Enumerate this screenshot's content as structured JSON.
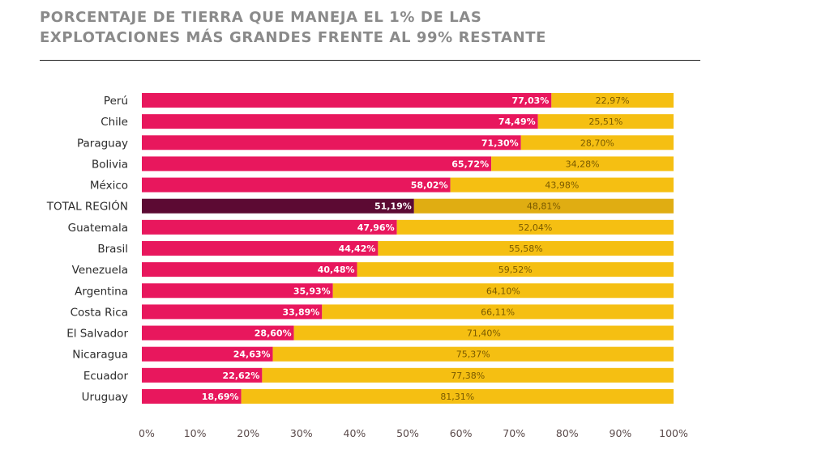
{
  "title": {
    "line1": "PORCENTAJE DE TIERRA QUE MANEJA EL 1% DE LAS",
    "line2": "EXPLOTACIONES MÁS GRANDES FRENTE AL 99% RESTANTE"
  },
  "colors": {
    "top1": "#e8175d",
    "rest99": "#f5bf12",
    "total_top1": "#5c0a33",
    "total_rest99": "#e0ad12"
  },
  "chart_data": {
    "type": "bar",
    "orientation": "horizontal",
    "stacked": true,
    "title": "PORCENTAJE DE TIERRA QUE MANEJA EL 1% DE LAS EXPLOTACIONES MÁS GRANDES FRENTE AL 99% RESTANTE",
    "xlim": [
      0,
      100
    ],
    "categories": [
      "Perú",
      "Chile",
      "Paraguay",
      "Bolivia",
      "México",
      "TOTAL REGIÓN",
      "Guatemala",
      "Brasil",
      "Venezuela",
      "Argentina",
      "Costa Rica",
      "El Salvador",
      "Nicaragua",
      "Ecuador",
      "Uruguay"
    ],
    "highlight_category": "TOTAL REGIÓN",
    "series": [
      {
        "values": [
          77.03,
          74.49,
          71.3,
          65.72,
          58.02,
          51.19,
          47.96,
          44.42,
          40.48,
          35.93,
          33.89,
          28.6,
          24.63,
          22.62,
          18.69
        ]
      },
      {
        "values": [
          22.97,
          25.51,
          28.7,
          34.28,
          43.98,
          48.81,
          52.04,
          55.58,
          59.52,
          64.1,
          66.11,
          71.4,
          75.37,
          77.38,
          81.31
        ]
      }
    ],
    "labels_top": [
      "77,03%",
      "74,49%",
      "71,30%",
      "65,72%",
      "58,02%",
      "51,19%",
      "47,96%",
      "44,42%",
      "40,48%",
      "35,93%",
      "33,89%",
      "28,60%",
      "24,63%",
      "22,62%",
      "18,69%"
    ],
    "labels_rest": [
      "22,97%",
      "25,51%",
      "28,70%",
      "34,28%",
      "43,98%",
      "48,81%",
      "52,04%",
      "55,58%",
      "59,52%",
      "64,10%",
      "66,11%",
      "71,40%",
      "75,37%",
      "77,38%",
      "81,31%"
    ],
    "x_ticks": [
      "0%",
      "10%",
      "20%",
      "30%",
      "40%",
      "50%",
      "60%",
      "70%",
      "80%",
      "90%",
      "100%"
    ],
    "grid": false,
    "legend": "none"
  }
}
